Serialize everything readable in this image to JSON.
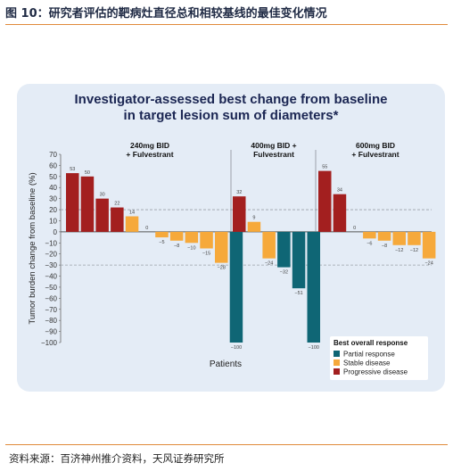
{
  "figure": {
    "title": "图 10：研究者评估的靶病灶直径总和相较基线的最佳变化情况",
    "source": "资料来源：百济神州推介资料，天风证券研究所"
  },
  "colors": {
    "partial_response": "#0f6675",
    "stable_disease": "#f6a93b",
    "progressive_disease": "#a31f1f",
    "accent_rule": "#e08a3a",
    "panel_bg": "#e4ecf6",
    "title_text": "#1b2653"
  },
  "chart_data": {
    "type": "bar",
    "title": "Investigator-assessed best change from baseline in target lesion sum of diameters*",
    "title_lines": [
      "Investigator-assessed best change from baseline",
      "in target lesion sum of diameters*"
    ],
    "xlabel": "Patients",
    "ylabel": "Tumor burden change from baseline (%)",
    "ylim": [
      -100,
      70
    ],
    "yticks": [
      70,
      60,
      50,
      40,
      30,
      20,
      10,
      0,
      -10,
      -20,
      -30,
      -40,
      -50,
      -60,
      -70,
      -80,
      -90,
      -100
    ],
    "reference_lines": [
      20,
      -30
    ],
    "legend": {
      "title": "Best overall response",
      "position": "bottom-right",
      "entries": [
        {
          "label": "Partial response",
          "key": "PR"
        },
        {
          "label": "Stable disease",
          "key": "SD"
        },
        {
          "label": "Progressive disease",
          "key": "PD"
        }
      ]
    },
    "groups": [
      {
        "label_lines": [
          "240mg BID",
          "+ Fulvestrant"
        ],
        "bars": [
          {
            "value": 53,
            "label": "53",
            "response": "PD"
          },
          {
            "value": 50,
            "label": "50",
            "response": "PD"
          },
          {
            "value": 30,
            "label": "30",
            "response": "PD"
          },
          {
            "value": 22,
            "label": "22",
            "response": "PD"
          },
          {
            "value": 14,
            "label": "14",
            "response": "SD"
          },
          {
            "value": 0,
            "label": "0",
            "response": "SD"
          },
          {
            "value": -5,
            "label": "−5",
            "response": "SD"
          },
          {
            "value": -8,
            "label": "−8",
            "response": "SD"
          },
          {
            "value": -10,
            "label": "−10",
            "response": "SD"
          },
          {
            "value": -15,
            "label": "−15",
            "response": "SD"
          },
          {
            "value": -28,
            "label": "−28",
            "response": "SD"
          },
          {
            "value": -100,
            "label": "−100",
            "response": "PR"
          }
        ]
      },
      {
        "label_lines": [
          "400mg BID +",
          "Fulvestrant"
        ],
        "bars": [
          {
            "value": 32,
            "label": "32",
            "response": "PD"
          },
          {
            "value": 9,
            "label": "9",
            "response": "SD"
          },
          {
            "value": -24,
            "label": "−24",
            "response": "SD"
          },
          {
            "value": -32,
            "label": "−32",
            "response": "PR"
          },
          {
            "value": -51,
            "label": "−51",
            "response": "PR"
          },
          {
            "value": -100,
            "label": "−100",
            "response": "PR"
          }
        ]
      },
      {
        "label_lines": [
          "600mg BID",
          "+ Fulvestrant"
        ],
        "bars": [
          {
            "value": 55,
            "label": "55",
            "response": "PD"
          },
          {
            "value": 34,
            "label": "34",
            "response": "PD"
          },
          {
            "value": 0,
            "label": "0",
            "response": "SD"
          },
          {
            "value": -6,
            "label": "−6",
            "response": "SD"
          },
          {
            "value": -8,
            "label": "−8",
            "response": "SD"
          },
          {
            "value": -12,
            "label": "−12",
            "response": "SD"
          },
          {
            "value": -12,
            "label": "−12",
            "response": "SD"
          },
          {
            "value": -24,
            "label": "−24",
            "response": "SD"
          }
        ]
      }
    ]
  }
}
